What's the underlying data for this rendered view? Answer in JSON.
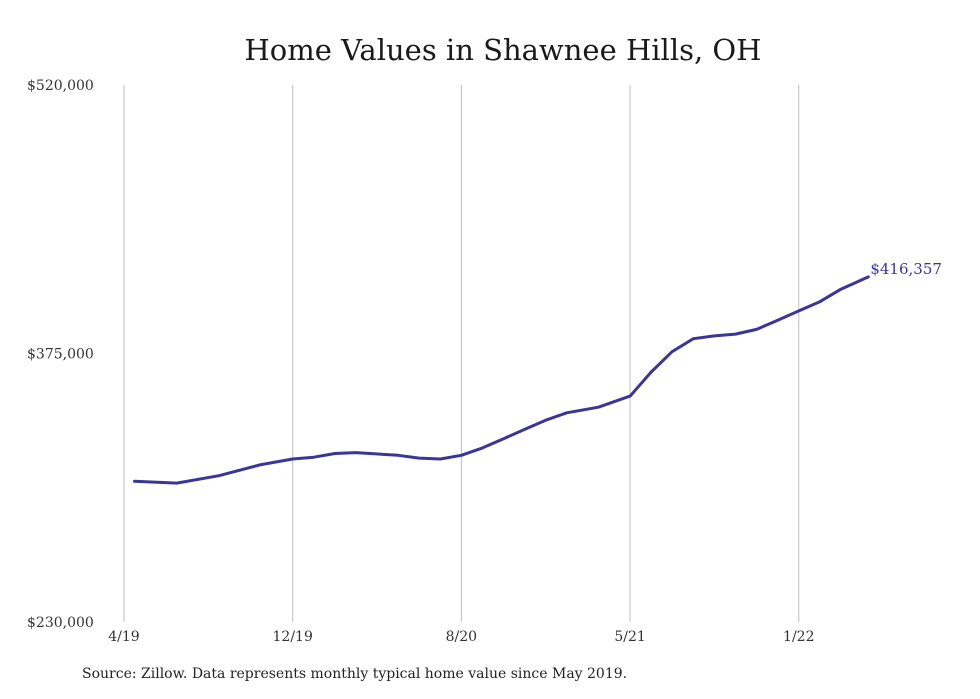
{
  "chart_data": {
    "type": "line",
    "title": "Home Values in Shawnee Hills, OH",
    "xlabel": "",
    "ylabel": "",
    "ylim": [
      230000,
      520000
    ],
    "y_ticks": [
      "$520,000",
      "$375,000",
      "$230,000"
    ],
    "y_tick_values": [
      520000,
      375000,
      230000
    ],
    "x_ticks": [
      "4/19",
      "12/19",
      "8/20",
      "5/21",
      "1/22"
    ],
    "x_tick_positions": [
      0,
      8,
      16,
      24,
      32
    ],
    "x_range": [
      0,
      35.9
    ],
    "grid": "vertical",
    "line_color": "#3b3599",
    "series": [
      {
        "values": [
          [
            0.5,
            306000
          ],
          [
            2.5,
            305000
          ],
          [
            4.5,
            309000
          ],
          [
            6.5,
            315000
          ],
          [
            8.0,
            318000
          ],
          [
            9.0,
            319000
          ],
          [
            10.0,
            321000
          ],
          [
            11.0,
            321500
          ],
          [
            13.0,
            320000
          ],
          [
            14.0,
            318500
          ],
          [
            15.0,
            318000
          ],
          [
            16.0,
            320000
          ],
          [
            17.0,
            324000
          ],
          [
            18.0,
            329000
          ],
          [
            19.0,
            334000
          ],
          [
            20.0,
            339000
          ],
          [
            21.0,
            343000
          ],
          [
            22.5,
            346000
          ],
          [
            24.0,
            352000
          ],
          [
            25.0,
            365000
          ],
          [
            26.0,
            376000
          ],
          [
            27.0,
            383000
          ],
          [
            28.0,
            384500
          ],
          [
            29.0,
            385500
          ],
          [
            30.0,
            388000
          ],
          [
            31.0,
            393000
          ],
          [
            32.0,
            398000
          ],
          [
            33.0,
            403000
          ],
          [
            34.0,
            409700
          ],
          [
            35.3,
            416357
          ]
        ],
        "end_label": "$416,357"
      }
    ]
  },
  "footer": {
    "source": "Source: Zillow. Data represents monthly typical home value since May 2019."
  }
}
